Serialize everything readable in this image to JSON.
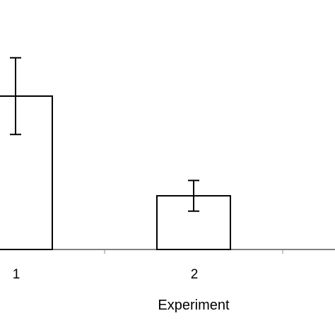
{
  "chart_data": {
    "type": "bar",
    "categories": [
      "1",
      "2"
    ],
    "values": [
      10,
      3.5
    ],
    "error": [
      2.5,
      1.0
    ],
    "xlabel": "Experiment",
    "ylabel": "",
    "ylim": [
      0,
      16.3
    ],
    "grid": false,
    "legend": "none",
    "colors": {
      "bar_fill": "#ffffff",
      "bar_stroke": "#000000",
      "axis": "#000000",
      "tick": "#888888"
    }
  }
}
